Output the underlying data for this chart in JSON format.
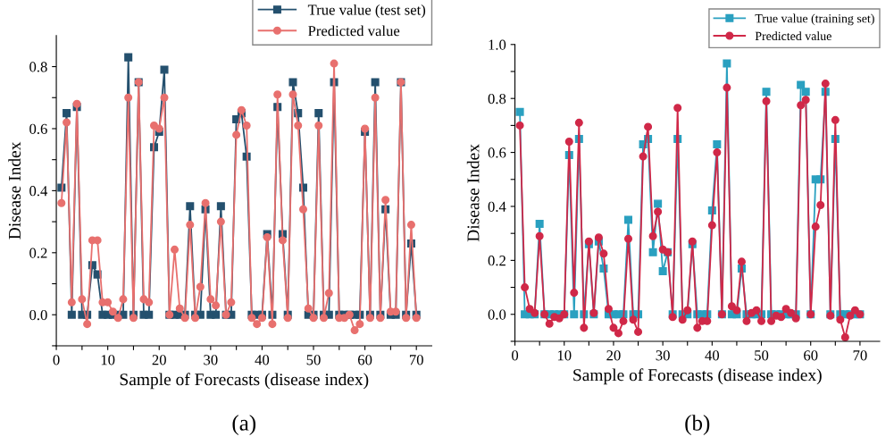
{
  "chart_data": [
    {
      "type": "line",
      "title": "(a)",
      "xlabel": "Sample of Forecasts (disease index)",
      "ylabel": "Disease Index",
      "xlim": [
        0,
        73
      ],
      "ylim": [
        -0.1,
        0.9
      ],
      "xticks": [
        0,
        {
          "value": 5,
          "label": null
        },
        10,
        {
          "value": 15,
          "label": null
        },
        20,
        {
          "value": 25,
          "label": null
        },
        30,
        {
          "value": 35,
          "label": null
        },
        40,
        {
          "value": 45,
          "label": null
        },
        50,
        {
          "value": 55,
          "label": null
        },
        60,
        {
          "value": 65,
          "label": null
        },
        70
      ],
      "yticks": [
        {
          "value": -0.1,
          "label": null
        },
        {
          "value": 0,
          "label": "0.0"
        },
        {
          "value": 0.1,
          "label": null
        },
        {
          "value": 0.2,
          "label": "0.2"
        },
        {
          "value": 0.3,
          "label": null
        },
        {
          "value": 0.4,
          "label": "0.4"
        },
        {
          "value": 0.5,
          "label": null
        },
        {
          "value": 0.6,
          "label": "0.6"
        },
        {
          "value": 0.7,
          "label": null
        },
        {
          "value": 0.8,
          "label": "0.8"
        }
      ],
      "x": [
        1,
        2,
        3,
        4,
        5,
        6,
        7,
        8,
        9,
        10,
        11,
        12,
        13,
        14,
        15,
        16,
        17,
        18,
        19,
        20,
        21,
        22,
        23,
        24,
        25,
        26,
        27,
        28,
        29,
        30,
        31,
        32,
        33,
        34,
        35,
        36,
        37,
        38,
        39,
        40,
        41,
        42,
        43,
        44,
        45,
        46,
        47,
        48,
        49,
        50,
        51,
        52,
        53,
        54,
        55,
        56,
        57,
        58,
        59,
        60,
        61,
        62,
        63,
        64,
        65,
        66,
        67,
        68,
        69,
        70
      ],
      "legend": "top right",
      "grid": false,
      "series": [
        {
          "name": "True value (test set)",
          "color": "#24506e",
          "marker": "square",
          "values": [
            0.41,
            0.65,
            0,
            0.67,
            0,
            0,
            0.16,
            0.13,
            0,
            0,
            0,
            0,
            0,
            0.83,
            0,
            0.75,
            0,
            0,
            0.54,
            0.59,
            0.79,
            0,
            0,
            0,
            0,
            0.35,
            0,
            0,
            0.34,
            0,
            0,
            0.35,
            0,
            0,
            0.63,
            0.65,
            0.51,
            0,
            0,
            0,
            0.26,
            0,
            0.67,
            0.26,
            0,
            0.75,
            0.65,
            0.41,
            0,
            0,
            0.65,
            0,
            0,
            0.75,
            0,
            0,
            0,
            0,
            0,
            0.59,
            0,
            0.75,
            0,
            0.34,
            0,
            0,
            0.75,
            0,
            0.23,
            0
          ]
        },
        {
          "name": "Predicted value",
          "color": "#e8706e",
          "marker": "circle",
          "values": [
            0.36,
            0.62,
            0.04,
            0.68,
            0.05,
            -0.03,
            0.24,
            0.24,
            0.04,
            0.04,
            0.01,
            -0.01,
            0.05,
            0.7,
            -0.01,
            0.75,
            0.05,
            0.04,
            0.61,
            0.6,
            0.7,
            0,
            0.21,
            0.02,
            -0.01,
            0.29,
            -0.01,
            0.09,
            0.36,
            0.05,
            0.03,
            0.3,
            0,
            0.04,
            0.58,
            0.66,
            0.61,
            -0.01,
            -0.03,
            -0.01,
            0.25,
            -0.03,
            0.71,
            0.24,
            -0.01,
            0.71,
            0.61,
            0.34,
            0.02,
            -0.01,
            0.61,
            -0.01,
            0.07,
            0.81,
            -0.01,
            -0.01,
            0,
            -0.05,
            -0.03,
            0.6,
            -0.01,
            0.7,
            -0.01,
            0.37,
            0.01,
            0.01,
            0.75,
            -0.01,
            0.29,
            -0.01
          ]
        }
      ]
    },
    {
      "type": "line",
      "title": "(b)",
      "xlabel": "Sample of Forecasts (disease index)",
      "ylabel": "Disease Index",
      "xlim": [
        0,
        74
      ],
      "ylim": [
        -0.1,
        1.0
      ],
      "xticks": [
        0,
        {
          "value": 5,
          "label": null
        },
        10,
        {
          "value": 15,
          "label": null
        },
        20,
        {
          "value": 25,
          "label": null
        },
        30,
        {
          "value": 35,
          "label": null
        },
        40,
        {
          "value": 45,
          "label": null
        },
        50,
        {
          "value": 55,
          "label": null
        },
        60,
        {
          "value": 65,
          "label": null
        },
        70
      ],
      "yticks": [
        {
          "value": -0.1,
          "label": null
        },
        {
          "value": 0,
          "label": "0.0"
        },
        {
          "value": 0.1,
          "label": null
        },
        {
          "value": 0.2,
          "label": "0.2"
        },
        {
          "value": 0.3,
          "label": null
        },
        {
          "value": 0.4,
          "label": "0.4"
        },
        {
          "value": 0.5,
          "label": null
        },
        {
          "value": 0.6,
          "label": "0.6"
        },
        {
          "value": 0.7,
          "label": null
        },
        {
          "value": 0.8,
          "label": "0.8"
        },
        {
          "value": 0.9,
          "label": null
        },
        {
          "value": 1.0,
          "label": "1.0"
        }
      ],
      "x": [
        1,
        2,
        3,
        4,
        5,
        6,
        7,
        8,
        9,
        10,
        11,
        12,
        13,
        14,
        15,
        16,
        17,
        18,
        19,
        20,
        21,
        22,
        23,
        24,
        25,
        26,
        27,
        28,
        29,
        30,
        31,
        32,
        33,
        34,
        35,
        36,
        37,
        38,
        39,
        40,
        41,
        42,
        43,
        44,
        45,
        46,
        47,
        48,
        49,
        50,
        51,
        52,
        53,
        54,
        55,
        56,
        57,
        58,
        59,
        60,
        61,
        62,
        63,
        64,
        65,
        66,
        67,
        68,
        69,
        70
      ],
      "legend": "top right",
      "grid": false,
      "series": [
        {
          "name": "True value (training set)",
          "color": "#2aa0c0",
          "marker": "square",
          "values": [
            0.75,
            0,
            0,
            0,
            0.335,
            0,
            0,
            0,
            0,
            0,
            0.59,
            0,
            0.65,
            0,
            0.26,
            0,
            0.27,
            0.17,
            0,
            0,
            0,
            0,
            0.35,
            0,
            0,
            0.63,
            0.65,
            0.23,
            0.41,
            0.16,
            0.23,
            0,
            0.65,
            0,
            0,
            0.26,
            0,
            0,
            0,
            0.385,
            0.63,
            0,
            0.93,
            0,
            0,
            0.17,
            0,
            0,
            0,
            0,
            0.825,
            0,
            0,
            0,
            0,
            0,
            0,
            0.85,
            0.825,
            0,
            0.5,
            0.5,
            0.825,
            0,
            0.65,
            0,
            0,
            0,
            0,
            0
          ]
        },
        {
          "name": "Predicted value",
          "color": "#d02848",
          "marker": "circle",
          "values": [
            0.7,
            0.1,
            0.02,
            0.005,
            0.29,
            0,
            -0.035,
            -0.01,
            -0.015,
            0,
            0.64,
            0.08,
            0.71,
            -0.05,
            0.27,
            0.005,
            0.285,
            0.225,
            0.02,
            -0.05,
            -0.07,
            -0.025,
            0.28,
            -0.02,
            -0.065,
            0.585,
            0.695,
            0.29,
            0.38,
            0.24,
            0.23,
            -0.01,
            0.765,
            -0.02,
            0.015,
            0.27,
            -0.05,
            -0.025,
            -0.025,
            0.33,
            0.6,
            0,
            0.84,
            0.03,
            0.015,
            0.195,
            -0.025,
            0.005,
            0.015,
            -0.025,
            0.79,
            -0.025,
            -0.005,
            -0.01,
            0.02,
            0.005,
            -0.015,
            0.775,
            0.795,
            0,
            0.325,
            0.405,
            0.855,
            -0.005,
            0.72,
            -0.02,
            -0.085,
            -0.005,
            0.015,
            0
          ]
        }
      ]
    }
  ]
}
